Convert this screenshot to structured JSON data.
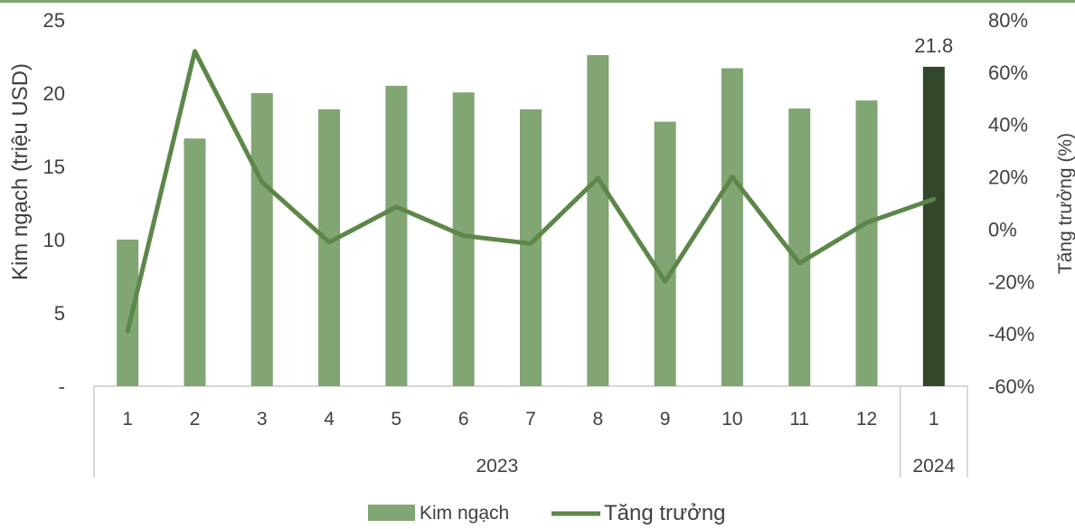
{
  "chart_data": {
    "type": "bar",
    "combo": "bar+line",
    "categories": [
      "1",
      "2",
      "3",
      "4",
      "5",
      "6",
      "7",
      "8",
      "9",
      "10",
      "11",
      "12",
      "1"
    ],
    "groups": [
      {
        "label": "2023",
        "count": 12
      },
      {
        "label": "2024",
        "count": 1
      }
    ],
    "series": [
      {
        "name": "Kim ngạch",
        "kind": "bar",
        "axis": "left",
        "values": [
          10.0,
          16.9,
          20.0,
          18.9,
          20.5,
          20.05,
          18.9,
          22.6,
          18.05,
          21.7,
          18.95,
          19.5,
          21.8
        ],
        "color": "#82a574",
        "highlight_color": "#33482b"
      },
      {
        "name": "Tăng trưởng",
        "kind": "line",
        "axis": "right",
        "values": [
          -39,
          68,
          18,
          -5,
          8.5,
          -2.5,
          -5.5,
          19.5,
          -20,
          20,
          -13,
          2.5,
          11.5
        ],
        "color": "#5d8749"
      }
    ],
    "data_labels": [
      {
        "index": 12,
        "text": "21.8"
      }
    ],
    "title": "",
    "ylabel": "Kim ngạch (triệu USD)",
    "y2label": "Tăng trưởng (%)",
    "ylim": [
      0,
      25
    ],
    "y2lim": [
      -60,
      80
    ],
    "yticks": [
      "-",
      "5",
      "10",
      "15",
      "20",
      "25"
    ],
    "y2ticks": [
      "-60%",
      "-40%",
      "-20%",
      "0%",
      "20%",
      "40%",
      "60%",
      "80%"
    ],
    "grid": false,
    "legend_position": "bottom",
    "colors": {
      "frame_top": "#82a574",
      "axis": "#bfbfbf",
      "text": "#404040"
    }
  }
}
